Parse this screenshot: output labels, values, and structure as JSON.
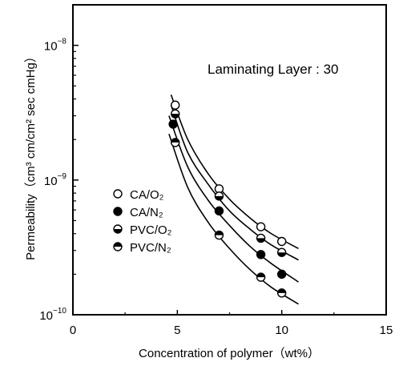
{
  "chart_data": {
    "type": "scatter",
    "title": "",
    "annotation": "Laminating Layer : 30",
    "xlabel": "Concentration of polymer（wt%）",
    "ylabel": "Permeability（cm³ cm/cm² sec cmHg）",
    "xlim": [
      0,
      15
    ],
    "ylim": [
      1e-10,
      2e-08
    ],
    "yscale": "log",
    "grid": false,
    "legend_position": "center-left",
    "x_ticks": [
      {
        "value": 0,
        "label": "0"
      },
      {
        "value": 5,
        "label": "5"
      },
      {
        "value": 10,
        "label": "10"
      },
      {
        "value": 15,
        "label": "15"
      }
    ],
    "y_ticks": [
      {
        "value": 1e-10,
        "base": "10",
        "exp": "−10"
      },
      {
        "value": 1e-09,
        "base": "10",
        "exp": "−9"
      },
      {
        "value": 1e-08,
        "base": "10",
        "exp": "−8"
      }
    ],
    "series": [
      {
        "name": "CA/O₂",
        "marker": "open",
        "x": [
          4.9,
          7.0,
          9.0,
          10.0
        ],
        "y": [
          3.6e-09,
          8.6e-10,
          4.5e-10,
          3.5e-10
        ]
      },
      {
        "name": "CA/N₂",
        "marker": "filled",
        "x": [
          4.8,
          7.0,
          9.0,
          10.0
        ],
        "y": [
          2.6e-09,
          5.9e-10,
          2.8e-10,
          2e-10
        ]
      },
      {
        "name": "PVC/O₂",
        "marker": "half-bottom",
        "x": [
          4.9,
          7.0,
          9.0,
          10.0
        ],
        "y": [
          3.1e-09,
          7.6e-10,
          3.7e-10,
          2.9e-10
        ]
      },
      {
        "name": "PVC/N₂",
        "marker": "half-top",
        "x": [
          4.9,
          7.0,
          9.0,
          10.0
        ],
        "y": [
          1.9e-09,
          3.9e-10,
          1.9e-10,
          1.45e-10
        ]
      }
    ],
    "curves": [
      {
        "x": [
          4.7,
          5.5,
          6.5,
          7.5,
          8.5,
          9.5,
          10.8
        ],
        "y": [
          4.3e-09,
          2e-09,
          1.1e-09,
          7.2e-10,
          5.2e-10,
          4e-10,
          3.1e-10
        ]
      },
      {
        "x": [
          4.7,
          5.5,
          6.5,
          7.5,
          8.5,
          9.5,
          10.8
        ],
        "y": [
          3.6e-09,
          1.6e-09,
          9.2e-10,
          5.9e-10,
          4.3e-10,
          3.3e-10,
          2.55e-10
        ]
      },
      {
        "x": [
          4.6,
          5.5,
          6.5,
          7.5,
          8.5,
          9.5,
          10.8
        ],
        "y": [
          3e-09,
          1.25e-09,
          7e-10,
          4.6e-10,
          3.2e-10,
          2.4e-10,
          1.75e-10
        ]
      },
      {
        "x": [
          4.6,
          5.5,
          6.5,
          7.5,
          8.5,
          9.5,
          10.8
        ],
        "y": [
          2.2e-09,
          8.8e-10,
          4.8e-10,
          3.1e-10,
          2.15e-10,
          1.6e-10,
          1.2e-10
        ]
      }
    ]
  }
}
